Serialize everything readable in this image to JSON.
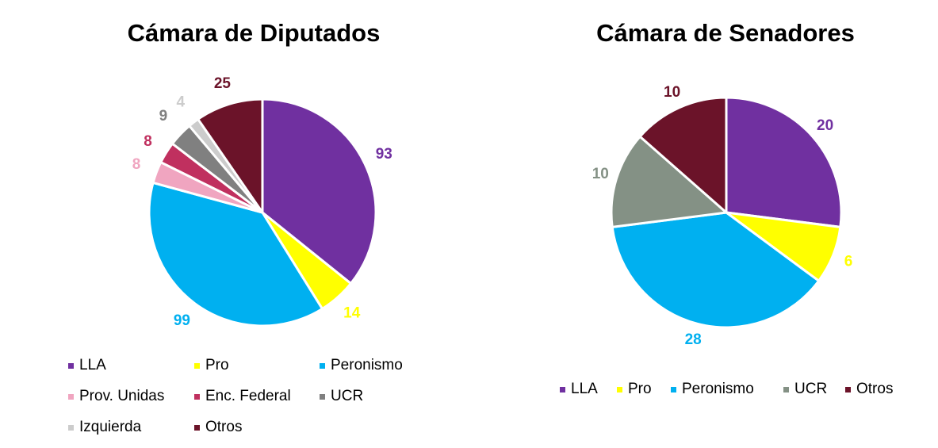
{
  "chart_data": [
    {
      "type": "pie",
      "title": "Cámara de Diputados",
      "categories": [
        "LLA",
        "Pro",
        "Peronismo",
        "Prov. Unidas",
        "Enc. Federal",
        "UCR",
        "Izquierda",
        "Otros"
      ],
      "values": [
        93,
        14,
        99,
        8,
        8,
        9,
        4,
        25
      ],
      "data_labels": [
        "93",
        "14",
        "99",
        "8",
        "8",
        "9",
        "4",
        "25"
      ],
      "colors": [
        "#7030a0",
        "#ffff00",
        "#00b0f0",
        "#f0a5c0",
        "#c0305f",
        "#808080",
        "#cccccc",
        "#6b1329"
      ],
      "legend": [
        "LLA",
        "Pro",
        "Peronismo",
        "Prov. Unidas",
        "Enc. Federal",
        "UCR",
        "Izquierda",
        "Otros"
      ],
      "legend_position": "bottom"
    },
    {
      "type": "pie",
      "title": "Cámara de Senadores",
      "categories": [
        "LLA",
        "Pro",
        "Peronismo",
        "UCR",
        "Otros"
      ],
      "values": [
        20,
        6,
        28,
        10,
        10
      ],
      "data_labels": [
        "20",
        "6",
        "28",
        "10",
        "10"
      ],
      "colors": [
        "#7030a0",
        "#ffff00",
        "#00b0f0",
        "#849185",
        "#6b1329"
      ],
      "legend": [
        "LLA",
        "Pro",
        "Peronismo",
        "UCR",
        "Otros"
      ],
      "legend_position": "bottom"
    }
  ]
}
